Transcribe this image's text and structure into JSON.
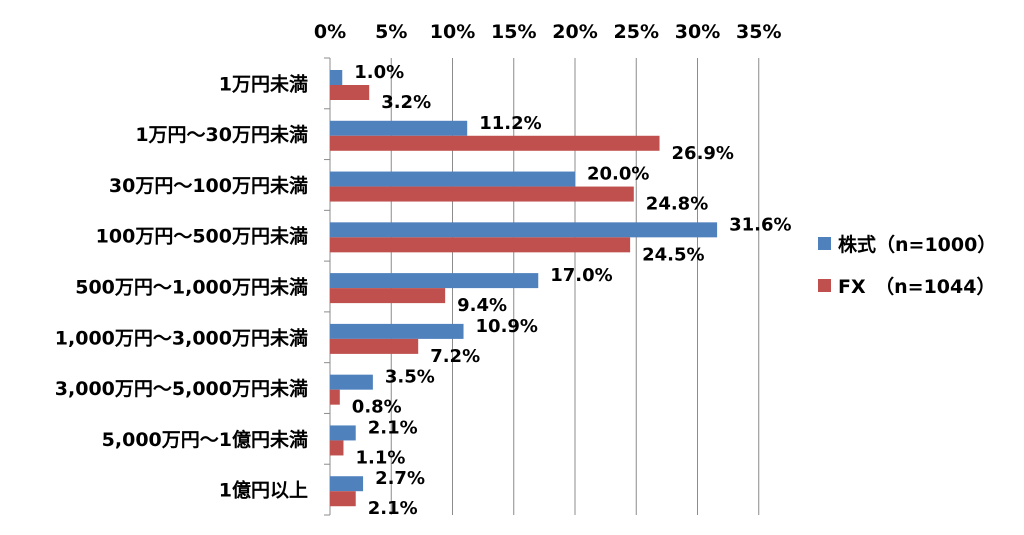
{
  "chart_data": {
    "type": "bar",
    "orientation": "horizontal",
    "categories": [
      "1万円未満",
      "1万円～30万円未満",
      "30万円～100万円未満",
      "100万円～500万円未満",
      "500万円～1,000万円未満",
      "1,000万円～3,000万円未満",
      "3,000万円～5,000万円未満",
      "5,000万円～1億円未満",
      "1億円以上"
    ],
    "series": [
      {
        "name": "株式（n=1000）",
        "color": "#4F81BD",
        "values": [
          1.0,
          11.2,
          20.0,
          31.6,
          17.0,
          10.9,
          3.5,
          2.1,
          2.7
        ],
        "labels": [
          "1.0%",
          "11.2%",
          "20.0%",
          "31.6%",
          "17.0%",
          "10.9%",
          "3.5%",
          "2.1%",
          "2.7%"
        ]
      },
      {
        "name": "FX　（n=1044）",
        "color": "#C0504D",
        "values": [
          3.2,
          26.9,
          24.8,
          24.5,
          9.4,
          7.2,
          0.8,
          1.1,
          2.1
        ],
        "labels": [
          "3.2%",
          "26.9%",
          "24.8%",
          "24.5%",
          "9.4%",
          "7.2%",
          "0.8%",
          "1.1%",
          "2.1%"
        ]
      }
    ],
    "xlim": [
      0,
      35
    ],
    "xticks": [
      0,
      5,
      10,
      15,
      20,
      25,
      30,
      35
    ],
    "xtick_labels": [
      "0%",
      "5%",
      "10%",
      "15%",
      "20%",
      "25%",
      "30%",
      "35%"
    ],
    "axis_position": "top",
    "grid": true,
    "legend_position": "right",
    "title": "",
    "xlabel": "",
    "ylabel": ""
  }
}
